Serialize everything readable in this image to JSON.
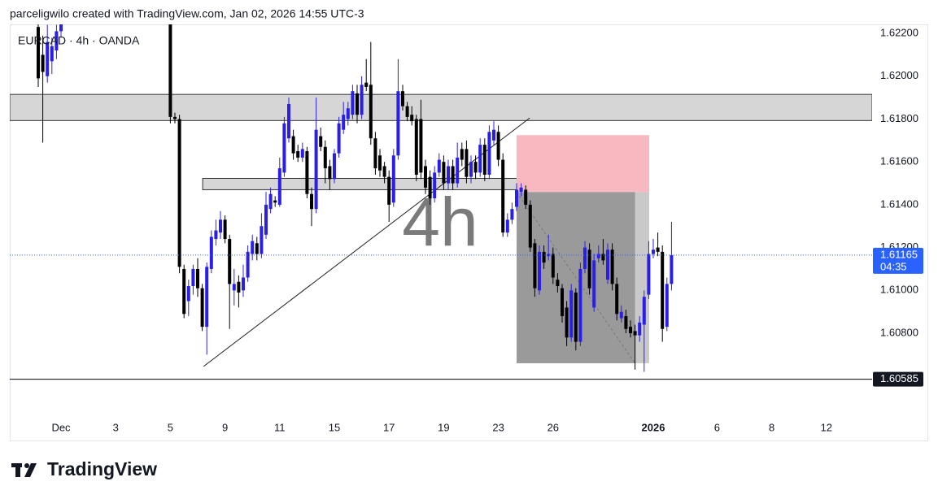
{
  "header": "parceligwilo created with TradingView.com, Jan 02, 2026 14:55 UTC-3",
  "brand": "TradingView",
  "chart_data": {
    "type": "candlestick",
    "symbol_label": "EURCAD · 4h · OANDA",
    "watermark": "4h",
    "categories": [
      null,
      null,
      null,
      null,
      null,
      null,
      null,
      null,
      null,
      null,
      "Dec",
      null,
      null,
      null,
      null,
      null,
      null,
      null,
      null,
      null,
      null,
      null,
      "3",
      null,
      null,
      null,
      null,
      null,
      null,
      null,
      null,
      null,
      null,
      null,
      "5",
      null,
      null,
      null,
      null,
      null,
      null,
      null,
      null,
      null,
      null,
      null,
      "9",
      null,
      null,
      null,
      null,
      null,
      null,
      null,
      null,
      null,
      null,
      null,
      "11",
      null,
      null,
      null,
      null,
      null,
      null,
      null,
      null,
      null,
      null,
      null,
      "15",
      null,
      null,
      null,
      null,
      null,
      null,
      null,
      null,
      null,
      null,
      null,
      "17",
      null,
      null,
      null,
      null,
      null,
      null,
      null,
      null,
      null,
      null,
      null,
      "19",
      null,
      null,
      null,
      null,
      null,
      null,
      null,
      null,
      null,
      null,
      null,
      "23",
      null,
      null,
      null,
      null,
      null,
      null,
      null,
      null,
      null,
      null,
      null,
      "26",
      null,
      null,
      null,
      null,
      null,
      null,
      null,
      null,
      null,
      null,
      null,
      null,
      null,
      null,
      null,
      null,
      null,
      null,
      null,
      null,
      null,
      "2026",
      null,
      null,
      null,
      null,
      null,
      null,
      null,
      null,
      null,
      null,
      null,
      null,
      null,
      "6",
      null,
      null,
      null,
      null,
      null,
      null,
      null,
      null,
      null,
      null,
      null,
      "8",
      null,
      null,
      null,
      null,
      null,
      null,
      null,
      null,
      null,
      null,
      null,
      "12",
      null,
      null,
      null,
      null,
      null,
      null,
      null,
      null,
      null
    ],
    "open": [
      null,
      null,
      null,
      null,
      null,
      1.6223,
      1.621,
      1.62,
      1.6207,
      1.6212,
      1.6221,
      null,
      null,
      null,
      null,
      null,
      null,
      null,
      null,
      null,
      null,
      null,
      null,
      null,
      null,
      null,
      null,
      null,
      null,
      null,
      null,
      null,
      null,
      null,
      1.6232,
      1.6181,
      1.618,
      1.611,
      1.6095,
      1.6102,
      1.611,
      1.6101,
      1.6083,
      1.611,
      1.6124,
      1.6127,
      1.6133,
      1.6124,
      1.61,
      1.6104,
      1.61,
      1.6106,
      1.6117,
      1.6122,
      1.6117,
      1.6126,
      1.6138,
      1.6142,
      1.614,
      1.6155,
      1.6171,
      1.6172,
      1.6165,
      1.6162,
      1.6165,
      1.6145,
      1.6138,
      1.6172,
      1.6167,
      1.6158,
      1.6152,
      1.6164,
      1.6175,
      1.618,
      1.6182,
      1.6192,
      1.6182,
      1.6197,
      1.6196,
      1.6171,
      1.6163,
      1.6158,
      1.6153,
      1.6141,
      1.6163,
      1.6193,
      1.6186,
      1.6182,
      1.618,
      1.618,
      1.6158,
      1.6153,
      1.6143,
      1.6155,
      1.616,
      1.615,
      1.6158,
      1.615,
      1.6166,
      1.6166,
      1.6153,
      1.616,
      1.6155,
      1.6168,
      1.6154,
      1.617,
      1.6174,
      1.6161,
      1.6127,
      1.6133,
      1.6139,
      1.6146,
      1.6147,
      1.614,
      1.6122,
      1.61,
      1.6118,
      1.6116,
      1.6117,
      1.6105,
      1.6101,
      1.6092,
      1.6078,
      1.6099,
      1.6076,
      1.611,
      1.6119,
      1.6092,
      1.6115,
      1.6117,
      1.6105,
      1.6119,
      1.6103,
      1.6087,
      1.6088,
      1.6083,
      1.6081,
      1.6079,
      1.6084,
      1.6098,
      1.6117,
      1.612,
      1.6118,
      1.6083,
      1.6103,
      null,
      null,
      null,
      null,
      null,
      null,
      null,
      null,
      null,
      null,
      null,
      null,
      null,
      null,
      null,
      null,
      null,
      null,
      null,
      null,
      null,
      null,
      null,
      null,
      null,
      null,
      null,
      null,
      null,
      null,
      null,
      null,
      null,
      null,
      null,
      null,
      null,
      null,
      null,
      null,
      null,
      null,
      null
    ],
    "high": [
      null,
      null,
      null,
      null,
      null,
      1.623,
      1.6219,
      1.6224,
      1.6218,
      1.6224,
      1.6229,
      null,
      null,
      null,
      null,
      null,
      null,
      null,
      null,
      null,
      null,
      null,
      null,
      null,
      null,
      null,
      null,
      null,
      null,
      null,
      null,
      null,
      null,
      null,
      1.6236,
      1.6183,
      1.6182,
      1.6112,
      1.6105,
      1.6112,
      1.6115,
      1.6103,
      1.6113,
      1.6128,
      1.6133,
      1.6137,
      1.6135,
      1.6126,
      1.611,
      1.6107,
      1.6112,
      1.6121,
      1.6126,
      1.6125,
      1.6136,
      1.6146,
      1.6148,
      1.6144,
      1.6162,
      1.6181,
      1.619,
      1.6175,
      1.6168,
      1.6169,
      1.6167,
      1.6148,
      1.619,
      1.6176,
      1.617,
      1.6161,
      1.6166,
      1.6181,
      1.6188,
      1.6188,
      1.6196,
      1.6196,
      1.62,
      1.6208,
      1.6216,
      1.6174,
      1.6166,
      1.616,
      1.6156,
      1.6166,
      1.6208,
      1.6196,
      1.6188,
      1.6186,
      1.6182,
      1.6189,
      1.6161,
      1.6156,
      1.6158,
      1.6164,
      1.6163,
      1.6161,
      1.6161,
      1.6169,
      1.6169,
      1.617,
      1.6163,
      1.6163,
      1.6171,
      1.6171,
      1.6177,
      1.6179,
      1.6177,
      1.6164,
      1.6136,
      1.6141,
      1.615,
      1.615,
      1.6149,
      1.6142,
      1.6124,
      1.6121,
      1.6121,
      1.6126,
      1.612,
      1.6108,
      1.6103,
      1.6095,
      1.6103,
      1.6101,
      1.6113,
      1.6123,
      1.6122,
      1.6117,
      1.6121,
      1.6124,
      1.6122,
      1.6122,
      1.6106,
      1.6093,
      1.6091,
      1.6086,
      1.6084,
      1.6088,
      1.61,
      1.6123,
      1.6124,
      1.6127,
      1.6121,
      1.6106,
      1.6132,
      null,
      null,
      null,
      null,
      null,
      null,
      null,
      null,
      null,
      null,
      null,
      null,
      null,
      null,
      null,
      null,
      null,
      null,
      null,
      null,
      null,
      null,
      null,
      null,
      null,
      null,
      null,
      null,
      null,
      null,
      null,
      null,
      null,
      null,
      null,
      null,
      null,
      null,
      null,
      null,
      null,
      null,
      null
    ],
    "low": [
      null,
      null,
      null,
      null,
      null,
      1.6195,
      1.6169,
      1.6197,
      1.6201,
      1.6208,
      1.6218,
      null,
      null,
      null,
      null,
      null,
      null,
      null,
      null,
      null,
      null,
      null,
      null,
      null,
      null,
      null,
      null,
      null,
      null,
      null,
      null,
      null,
      null,
      null,
      1.6178,
      1.6178,
      1.6108,
      1.6087,
      1.6088,
      1.6098,
      1.6097,
      1.6081,
      1.607,
      1.6108,
      1.6121,
      1.6124,
      1.6122,
      1.6082,
      1.6093,
      1.6092,
      1.6097,
      1.6104,
      1.6114,
      1.6114,
      1.6115,
      1.6124,
      1.6136,
      1.6139,
      1.6139,
      1.6153,
      1.6169,
      1.6161,
      1.616,
      1.616,
      1.6143,
      1.613,
      1.6136,
      1.6165,
      1.615,
      1.6147,
      1.615,
      1.6162,
      1.6173,
      1.6177,
      1.618,
      1.6178,
      1.618,
      1.6193,
      1.6168,
      1.6154,
      1.6153,
      1.615,
      1.6132,
      1.6139,
      1.6161,
      1.6184,
      1.6179,
      1.6177,
      1.6151,
      1.6152,
      1.6145,
      1.614,
      1.6141,
      1.6153,
      1.6147,
      1.6147,
      1.6147,
      1.6148,
      1.6158,
      1.615,
      1.615,
      1.6152,
      1.6153,
      1.6151,
      1.6152,
      1.6168,
      1.6158,
      1.6125,
      1.6125,
      1.6131,
      1.6137,
      1.6144,
      1.6138,
      1.6118,
      1.6097,
      1.6098,
      1.611,
      1.6114,
      1.6103,
      1.6099,
      1.6085,
      1.6074,
      1.6076,
      1.6072,
      1.6074,
      1.6108,
      1.6098,
      1.609,
      1.6113,
      1.6112,
      1.6103,
      1.61,
      1.6086,
      1.6085,
      1.608,
      1.6078,
      1.6063,
      1.6076,
      1.6062,
      1.6096,
      1.6115,
      1.6116,
      1.6076,
      1.6081,
      1.61,
      null,
      null,
      null,
      null,
      null,
      null,
      null,
      null,
      null,
      null,
      null,
      null,
      null,
      null,
      null,
      null,
      null,
      null,
      null,
      null,
      null,
      null,
      null,
      null,
      null,
      null,
      null,
      null,
      null,
      null,
      null,
      null,
      null,
      null,
      null,
      null,
      null,
      null,
      null,
      null,
      null,
      null,
      null
    ],
    "close": [
      null,
      null,
      null,
      null,
      null,
      1.6199,
      1.6202,
      1.6216,
      1.6214,
      1.6221,
      1.6226,
      null,
      null,
      null,
      null,
      null,
      null,
      null,
      null,
      null,
      null,
      null,
      null,
      null,
      null,
      null,
      null,
      null,
      null,
      null,
      null,
      null,
      null,
      null,
      1.6181,
      1.618,
      1.6111,
      1.6089,
      1.6102,
      1.611,
      1.6101,
      1.6083,
      1.6111,
      1.6125,
      1.6128,
      1.6133,
      1.6124,
      1.6103,
      1.6103,
      1.6099,
      1.6106,
      1.6118,
      1.6123,
      1.6117,
      1.613,
      1.614,
      1.6145,
      1.6141,
      1.6157,
      1.6178,
      1.6187,
      1.6164,
      1.6162,
      1.6166,
      1.6145,
      1.6138,
      1.6175,
      1.6167,
      1.6157,
      1.6152,
      1.6164,
      1.6178,
      1.6182,
      1.6185,
      1.6193,
      1.6182,
      1.6196,
      1.6195,
      1.6171,
      1.6157,
      1.6156,
      1.6153,
      1.614,
      1.6163,
      1.6193,
      1.6186,
      1.6181,
      1.6179,
      1.6154,
      1.6155,
      1.6148,
      1.6143,
      1.6155,
      1.6161,
      1.615,
      1.6158,
      1.615,
      1.6162,
      1.6161,
      1.6153,
      1.616,
      1.6155,
      1.6168,
      1.6154,
      1.6174,
      1.6175,
      1.6161,
      1.6127,
      1.6133,
      1.6138,
      1.6147,
      1.6148,
      1.614,
      1.612,
      1.6101,
      1.6118,
      1.6113,
      1.6117,
      1.6106,
      1.6102,
      1.6088,
      1.6078,
      1.61,
      1.6076,
      1.611,
      1.612,
      1.6101,
      1.6114,
      1.6117,
      1.6114,
      1.6119,
      1.6103,
      1.6089,
      1.609,
      1.6082,
      1.608,
      1.6079,
      1.6085,
      1.6097,
      1.6117,
      1.6119,
      1.6118,
      1.6082,
      1.6103,
      1.61165,
      null,
      null,
      null,
      null,
      null,
      null,
      null,
      null,
      null,
      null,
      null,
      null,
      null,
      null,
      null,
      null,
      null,
      null,
      null,
      null,
      null,
      null,
      null,
      null,
      null,
      null,
      null,
      null,
      null,
      null,
      null,
      null,
      null,
      null,
      null,
      null,
      null,
      null,
      null,
      null,
      null,
      null,
      null
    ],
    "up_color": "#2a1fe6",
    "down_color": "#000000",
    "ylim": [
      1.60413,
      1.62242
    ],
    "yticks": [
      {
        "value": 1.622,
        "label": "1.62200"
      },
      {
        "value": 1.62,
        "label": "1.62000"
      },
      {
        "value": 1.618,
        "label": "1.61800"
      },
      {
        "value": 1.616,
        "label": "1.61600"
      },
      {
        "value": 1.614,
        "label": "1.61400"
      },
      {
        "value": 1.612,
        "label": "1.61200"
      },
      {
        "value": 1.61,
        "label": "1.61000"
      },
      {
        "value": 1.608,
        "label": "1.60800"
      }
    ],
    "last_price": {
      "value": 1.61165,
      "label": "1.61165",
      "color": "#2962ff"
    },
    "countdown": "04:35",
    "zones": [
      {
        "from": 1.61793,
        "to": 1.61915,
        "color": "#d6d6d6"
      },
      {
        "from": 1.6147,
        "to": 1.61523,
        "color": "#d6d6d6"
      }
    ],
    "position": {
      "entry": 1.61459,
      "stop": 1.61725,
      "target": 1.6066
    },
    "trendline": [
      1.60645,
      1.61805
    ],
    "horizontal_line": {
      "value": 1.60585,
      "label": "1.60585"
    }
  }
}
